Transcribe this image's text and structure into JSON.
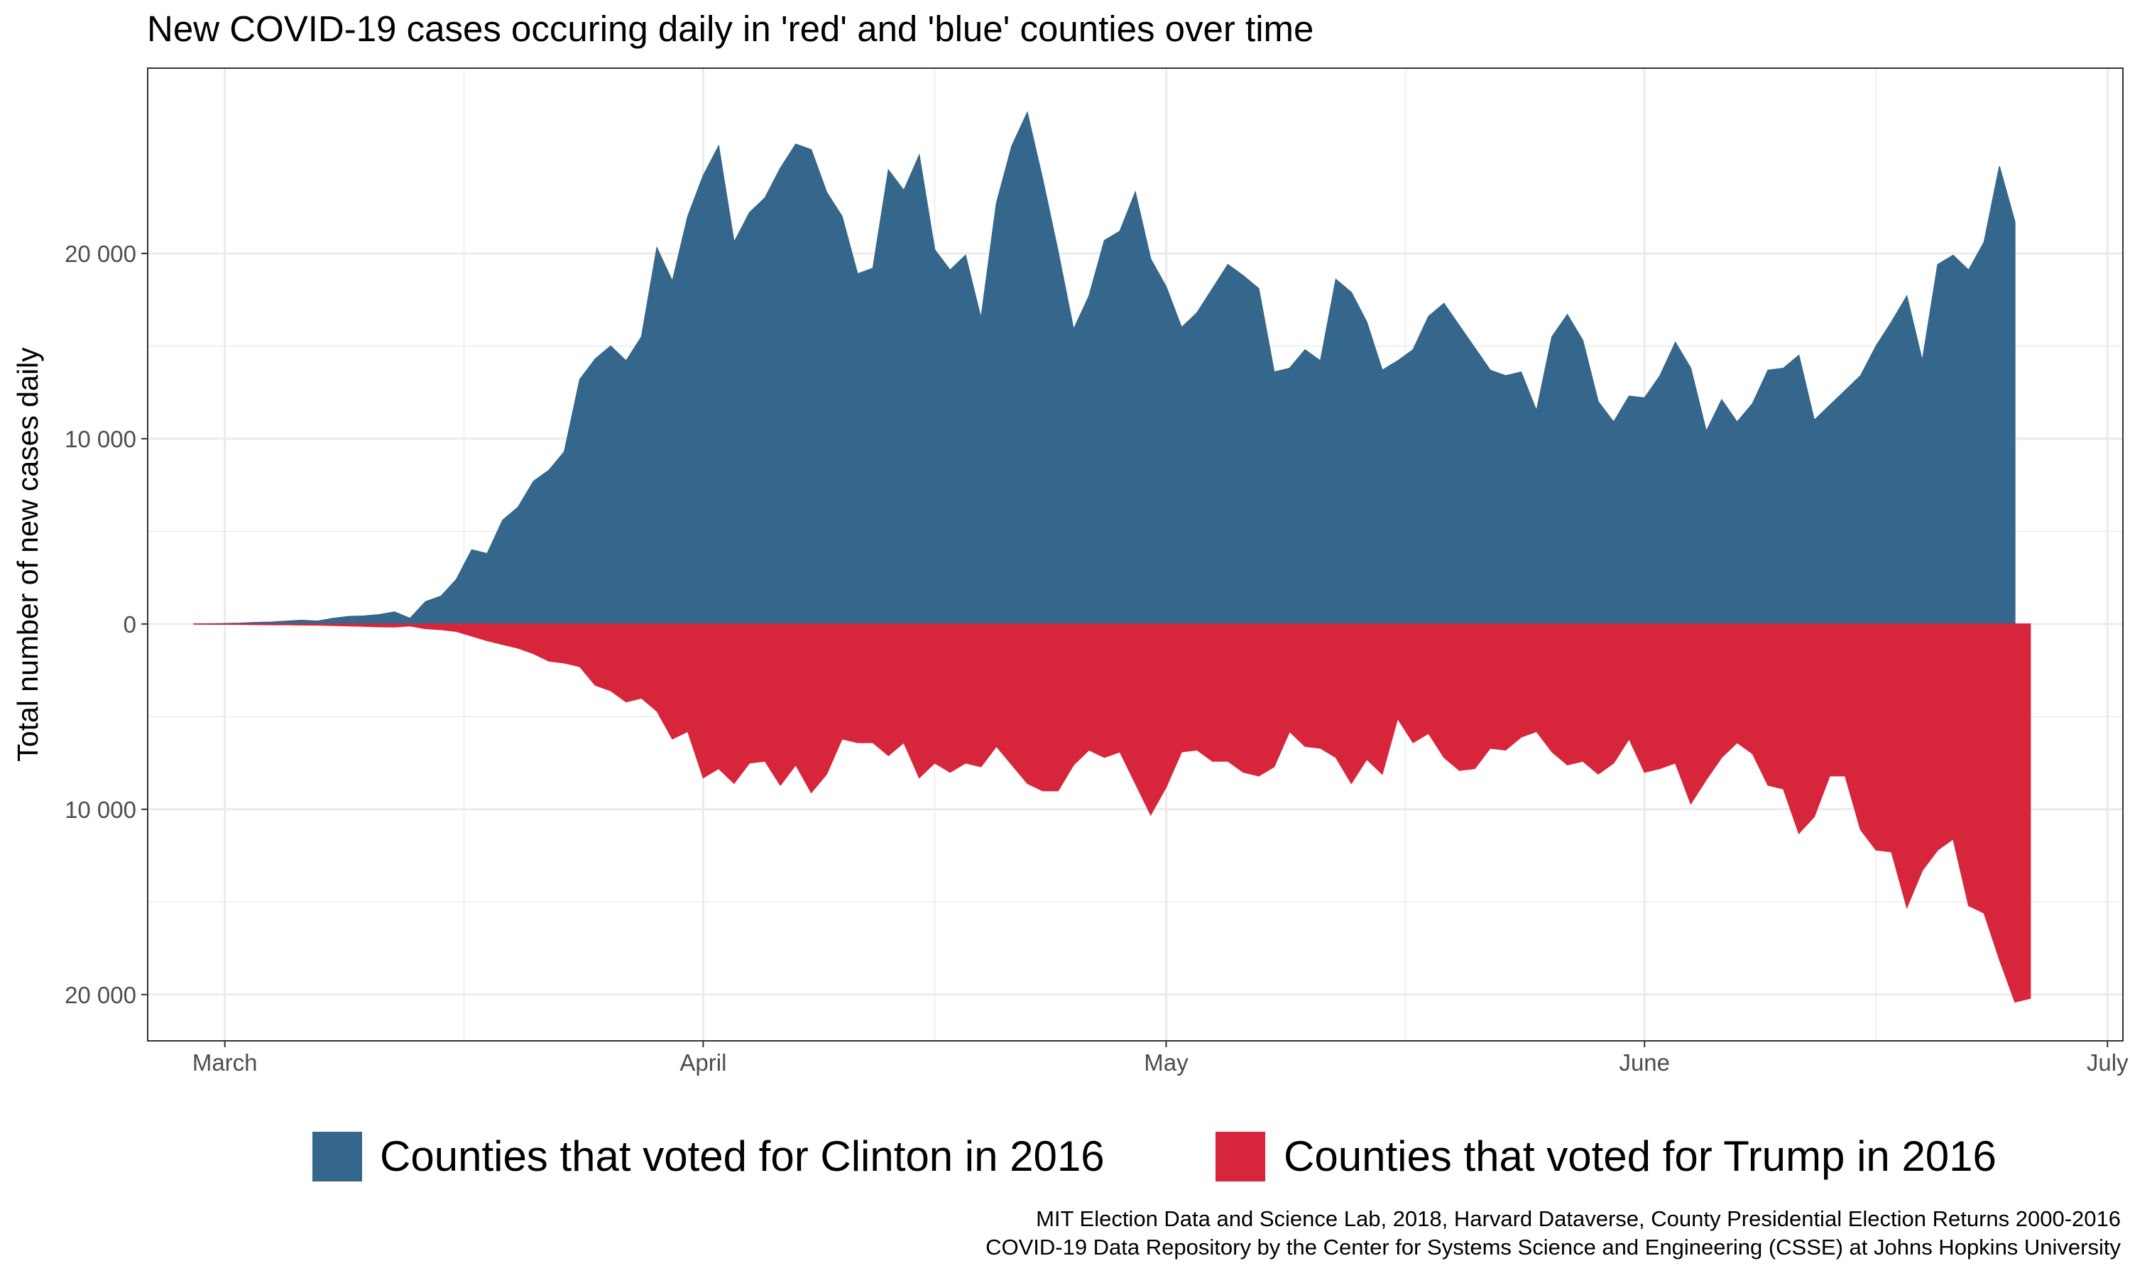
{
  "chart_data": {
    "type": "area",
    "title": "New COVID-19 cases occuring daily in 'red' and 'blue' counties over time",
    "ylabel": "Total number of new cases daily",
    "xlabel": "",
    "x_axis": {
      "ticks": [
        {
          "label": "March",
          "date": "2020-03-01"
        },
        {
          "label": "April",
          "date": "2020-04-01"
        },
        {
          "label": "May",
          "date": "2020-05-01"
        },
        {
          "label": "June",
          "date": "2020-06-01"
        },
        {
          "label": "July",
          "date": "2020-07-01"
        }
      ],
      "range": [
        "2020-02-25",
        "2020-07-02"
      ]
    },
    "y_axis": {
      "ticks": [
        {
          "label": "20 000",
          "value": 20000
        },
        {
          "label": "10 000",
          "value": 10000
        },
        {
          "label": "0",
          "value": 0
        },
        {
          "label": "10 000",
          "value": -10000
        },
        {
          "label": "20 000",
          "value": -20000
        }
      ],
      "range": [
        -22500,
        30000
      ]
    },
    "grid": true,
    "legend_position": "bottom",
    "series": [
      {
        "name": "Counties that voted for Clinton in 2016",
        "color": "#35668b",
        "direction": "up",
        "start_date": "2020-02-28",
        "values": [
          5,
          10,
          20,
          40,
          80,
          100,
          150,
          200,
          150,
          300,
          400,
          430,
          500,
          650,
          300,
          1200,
          1500,
          2400,
          4000,
          3800,
          5600,
          6300,
          7700,
          8300,
          9300,
          13200,
          14300,
          15000,
          14200,
          15500,
          20300,
          18500,
          22000,
          24200,
          25800,
          20600,
          22200,
          23000,
          24600,
          25900,
          25600,
          23300,
          22000,
          18900,
          19200,
          24500,
          23400,
          25300,
          20200,
          19100,
          19900,
          16500,
          22700,
          25800,
          27600,
          24000,
          20100,
          15900,
          17700,
          20700,
          21200,
          23300,
          19700,
          18200,
          16000,
          16800,
          18100,
          19400,
          18800,
          18100,
          13600,
          13800,
          14800,
          14200,
          18600,
          17900,
          16300,
          13700,
          14200,
          14800,
          16600,
          17300,
          16100,
          14900,
          13700,
          13400,
          13600,
          11500,
          15500,
          16700,
          15300,
          12000,
          10900,
          12300,
          12200,
          13400,
          15200,
          13800,
          10400,
          12100,
          10900,
          11900,
          13700,
          13800,
          14500,
          11000,
          11800,
          12600,
          13400,
          15000,
          16300,
          17700,
          14200,
          19400,
          19900,
          19100,
          20600,
          24700,
          21700
        ]
      },
      {
        "name": "Counties that voted for Trump in 2016",
        "color": "#d7263b",
        "direction": "down",
        "start_date": "2020-02-28",
        "values": [
          0,
          10,
          10,
          20,
          30,
          40,
          40,
          50,
          60,
          80,
          100,
          120,
          150,
          160,
          100,
          250,
          300,
          400,
          650,
          900,
          1100,
          1300,
          1600,
          2000,
          2100,
          2300,
          3300,
          3600,
          4200,
          4000,
          4700,
          6200,
          5800,
          8300,
          7800,
          8600,
          7500,
          7400,
          8700,
          7600,
          9100,
          8100,
          6200,
          6400,
          6400,
          7100,
          6400,
          8300,
          7500,
          8000,
          7500,
          7700,
          6600,
          7600,
          8600,
          9000,
          9000,
          7600,
          6800,
          7200,
          6900,
          8600,
          10300,
          8800,
          6900,
          6800,
          7400,
          7400,
          8000,
          8200,
          7700,
          5800,
          6600,
          6700,
          7200,
          8600,
          7300,
          8100,
          5100,
          6400,
          5900,
          7200,
          7900,
          7800,
          6700,
          6800,
          6100,
          5800,
          6900,
          7600,
          7400,
          8100,
          7500,
          6200,
          8000,
          7800,
          7500,
          9700,
          8400,
          7200,
          6400,
          7000,
          8700,
          8900,
          11300,
          10400,
          8200,
          8200,
          11100,
          12200,
          12300,
          15300,
          13300,
          12200,
          11600,
          15200,
          15600,
          18100,
          20400,
          20200
        ]
      }
    ],
    "caption": [
      "MIT Election Data and Science Lab, 2018, Harvard Dataverse, County Presidential Election Returns 2000-2016",
      "COVID-19 Data Repository by the Center for Systems Science and Engineering (CSSE) at Johns Hopkins University"
    ]
  }
}
